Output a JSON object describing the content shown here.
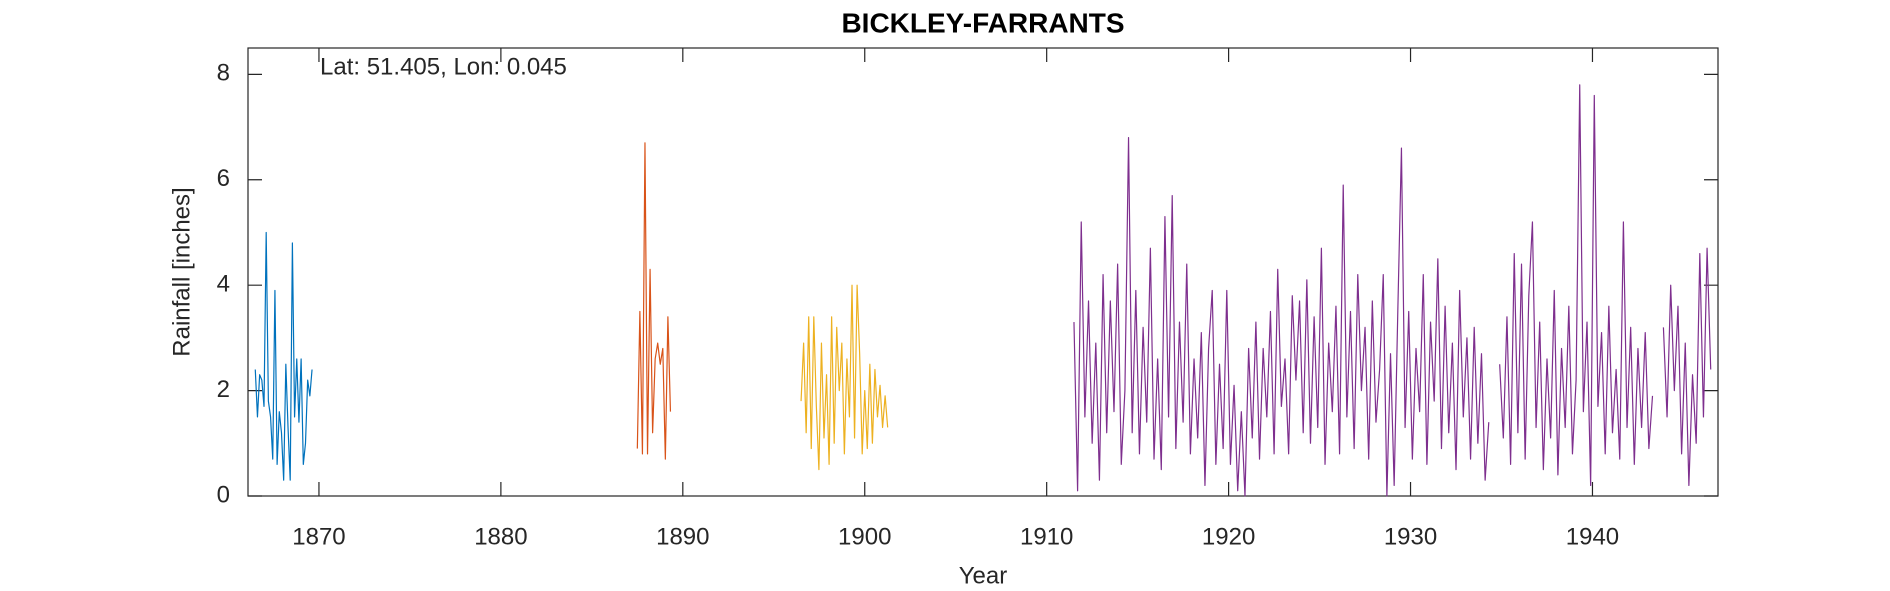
{
  "chart_data": {
    "type": "line",
    "title": "BICKLEY-FARRANTS",
    "annotation": "Lat: 51.405, Lon: 0.045",
    "x_label": "Year",
    "y_label": "Rainfall [inches]",
    "xlim": [
      1866.1,
      1946.9
    ],
    "xticks": [
      1870,
      1880,
      1890,
      1900,
      1910,
      1920,
      1930,
      1940
    ],
    "ylim": [
      0,
      8.5
    ],
    "yticks": [
      0,
      2,
      4,
      6,
      8
    ],
    "grid": false,
    "series": [
      {
        "color": "#0072BD",
        "x": [
          1866.5,
          1866.62,
          1866.74,
          1866.86,
          1866.98,
          1867.1,
          1867.22,
          1867.34,
          1867.46,
          1867.58,
          1867.7,
          1867.82,
          1867.94,
          1868.06,
          1868.18,
          1868.3,
          1868.42,
          1868.54,
          1868.66,
          1868.78,
          1868.9,
          1869.02,
          1869.14,
          1869.26,
          1869.38,
          1869.5,
          1869.62
        ],
        "values": [
          2.4,
          1.5,
          2.3,
          2.2,
          1.7,
          5.0,
          1.8,
          1.5,
          0.7,
          3.9,
          0.6,
          1.6,
          1.2,
          0.3,
          2.5,
          1.3,
          0.3,
          4.8,
          1.5,
          2.6,
          1.4,
          2.6,
          0.6,
          1.0,
          2.2,
          1.9,
          2.4
        ]
      },
      {
        "color": "#D95319",
        "x": [
          1887.5,
          1887.64,
          1887.78,
          1887.92,
          1888.06,
          1888.2,
          1888.34,
          1888.48,
          1888.62,
          1888.76,
          1888.9,
          1889.04,
          1889.18,
          1889.32
        ],
        "values": [
          0.9,
          3.5,
          0.8,
          6.7,
          0.8,
          4.3,
          1.2,
          2.6,
          2.9,
          2.5,
          2.8,
          0.7,
          3.4,
          1.6
        ]
      },
      {
        "color": "#EDB120",
        "x": [
          1896.5,
          1896.64,
          1896.78,
          1896.92,
          1897.06,
          1897.2,
          1897.34,
          1897.48,
          1897.62,
          1897.76,
          1897.9,
          1898.04,
          1898.18,
          1898.32,
          1898.46,
          1898.6,
          1898.74,
          1898.88,
          1899.02,
          1899.16,
          1899.3,
          1899.44,
          1899.58,
          1899.72,
          1899.86,
          1900,
          1900.14,
          1900.28,
          1900.42,
          1900.56,
          1900.7,
          1900.84,
          1900.98,
          1901.12,
          1901.26
        ],
        "values": [
          1.8,
          2.9,
          1.2,
          3.4,
          0.9,
          3.4,
          1.7,
          0.5,
          2.9,
          1.1,
          2.3,
          0.6,
          3.4,
          1.0,
          3.2,
          2.0,
          2.9,
          0.8,
          2.6,
          1.5,
          4.0,
          1.1,
          4.0,
          2.7,
          0.8,
          2.0,
          0.9,
          2.5,
          1.0,
          2.4,
          1.5,
          2.1,
          1.3,
          1.9,
          1.3
        ]
      },
      {
        "color": "#7E2F8E",
        "x": [
          1911.5,
          1911.7,
          1911.9,
          1912.1,
          1912.3,
          1912.5,
          1912.7,
          1912.9,
          1913.1,
          1913.3,
          1913.5,
          1913.7,
          1913.9,
          1914.1,
          1914.3,
          1914.5,
          1914.7,
          1914.9,
          1915.1,
          1915.3,
          1915.5,
          1915.7,
          1915.9,
          1916.1,
          1916.3,
          1916.5,
          1916.7,
          1916.9,
          1917.1,
          1917.3,
          1917.5,
          1917.7,
          1917.9,
          1918.1,
          1918.3,
          1918.5,
          1918.7,
          1918.9,
          1919.1,
          1919.3,
          1919.5,
          1919.7,
          1919.9,
          1920.1,
          1920.3,
          1920.5,
          1920.7,
          1920.9,
          1921.1,
          1921.3,
          1921.5,
          1921.7,
          1921.9,
          1922.1,
          1922.3,
          1922.5,
          1922.7,
          1922.9,
          1923.1,
          1923.3,
          1923.5,
          1923.7,
          1923.9,
          1924.1,
          1924.3,
          1924.5,
          1924.7,
          1924.9,
          1925.1,
          1925.3,
          1925.5,
          1925.7,
          1925.9,
          1926.1,
          1926.3,
          1926.5,
          1926.7,
          1926.9,
          1927.1,
          1927.3,
          1927.5,
          1927.7,
          1927.9,
          1928.1,
          1928.3,
          1928.5,
          1928.7,
          1928.9,
          1929.1,
          1929.3,
          1929.5,
          1929.7,
          1929.9,
          1930.1,
          1930.3,
          1930.5,
          1930.7,
          1930.9,
          1931.1,
          1931.3,
          1931.5,
          1931.7,
          1931.9,
          1932.1,
          1932.3,
          1932.5,
          1932.7,
          1932.9,
          1933.1,
          1933.3,
          1933.5,
          1933.7,
          1933.9,
          1934.1,
          1934.3,
          1934.5,
          1934.7,
          1934.9,
          1935.1,
          1935.3,
          1935.5,
          1935.7,
          1935.9,
          1936.1,
          1936.3,
          1936.5,
          1936.7,
          1936.9,
          1937.1,
          1937.3,
          1937.5,
          1937.7,
          1937.9,
          1938.1,
          1938.3,
          1938.5,
          1938.7,
          1938.9,
          1939.1,
          1939.3,
          1939.5,
          1939.7,
          1939.9,
          1940.1,
          1940.3,
          1940.5,
          1940.7,
          1940.9,
          1941.1,
          1941.3,
          1941.5,
          1941.7,
          1941.9,
          1942.1,
          1942.3,
          1942.5,
          1942.7,
          1942.9,
          1943.1,
          1943.3,
          1943.5,
          1943.7,
          1943.9,
          1944.1,
          1944.3,
          1944.5,
          1944.7,
          1944.9,
          1945.1,
          1945.3,
          1945.5,
          1945.7,
          1945.9,
          1946.1,
          1946.3,
          1946.5
        ],
        "values": [
          3.3,
          0.1,
          5.2,
          1.5,
          3.7,
          1.0,
          2.9,
          0.3,
          4.2,
          1.2,
          3.7,
          1.6,
          4.4,
          0.6,
          2.0,
          6.8,
          1.2,
          3.9,
          0.8,
          3.2,
          1.4,
          4.7,
          0.7,
          2.6,
          0.5,
          5.3,
          1.5,
          5.7,
          0.9,
          3.3,
          1.4,
          4.4,
          0.8,
          2.6,
          1.1,
          3.1,
          0.2,
          2.8,
          3.9,
          0.6,
          2.5,
          0.9,
          3.9,
          0.6,
          2.1,
          0.1,
          1.6,
          0.0,
          2.8,
          1.1,
          3.3,
          0.7,
          2.8,
          1.5,
          3.5,
          0.8,
          4.3,
          1.7,
          2.6,
          0.8,
          3.8,
          2.2,
          3.7,
          1.2,
          4.1,
          1.0,
          3.4,
          1.3,
          4.7,
          0.6,
          2.9,
          1.6,
          3.6,
          0.8,
          5.9,
          1.5,
          3.5,
          0.9,
          4.2,
          2.0,
          3.2,
          0.7,
          3.7,
          1.4,
          2.4,
          4.2,
          0.0,
          2.7,
          0.2,
          3.5,
          6.6,
          1.3,
          3.5,
          0.7,
          2.8,
          1.6,
          4.2,
          0.6,
          3.3,
          1.8,
          4.5,
          0.9,
          3.6,
          1.2,
          2.9,
          0.5,
          3.9,
          1.5,
          3.0,
          0.7,
          3.2,
          1.0,
          2.7,
          0.3,
          1.4,
          null,
          null,
          2.5,
          1.1,
          3.4,
          0.6,
          4.6,
          1.2,
          4.4,
          0.7,
          3.8,
          5.2,
          1.3,
          3.3,
          0.5,
          2.6,
          1.1,
          3.9,
          0.4,
          2.8,
          1.3,
          3.6,
          0.8,
          2.2,
          7.8,
          1.6,
          3.3,
          0.2,
          7.6,
          1.7,
          3.1,
          0.8,
          3.6,
          1.2,
          2.4,
          0.7,
          5.2,
          1.3,
          3.2,
          0.6,
          2.8,
          1.3,
          3.1,
          0.9,
          1.9,
          null,
          null,
          3.2,
          1.5,
          4.0,
          2.0,
          3.6,
          0.8,
          2.9,
          0.2,
          2.3,
          1.0,
          4.6,
          1.5,
          4.7,
          2.4
        ]
      }
    ]
  }
}
